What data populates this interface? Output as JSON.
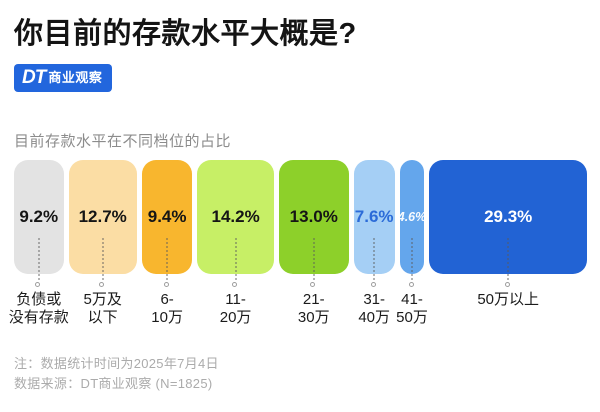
{
  "header": {
    "title": "你目前的存款水平大概是?",
    "logo": {
      "dt": "DT",
      "name": "商业观察",
      "bg": "#2266dd",
      "fg": "#ffffff"
    }
  },
  "chart": {
    "subtitle": "目前存款水平在不同档位的占比"
  },
  "chart_data": {
    "type": "bar",
    "variant": "proportional-horizontal-segmented",
    "title": "目前存款水平在不同档位的占比",
    "unit": "%",
    "total": 100,
    "categories": [
      "负债或没有存款",
      "5万及以下",
      "6-10万",
      "11-20万",
      "21-30万",
      "31-40万",
      "41-50万",
      "50万以上"
    ],
    "values": [
      9.2,
      12.7,
      9.4,
      14.2,
      13.0,
      7.6,
      4.6,
      29.3
    ],
    "segments": [
      {
        "label_lines": [
          "负债或",
          "没有存款"
        ],
        "value": 9.2,
        "display": "9.2%",
        "color": "#e3e3e3",
        "text_color": "#151515"
      },
      {
        "label_lines": [
          "5万及",
          "以下"
        ],
        "value": 12.7,
        "display": "12.7%",
        "color": "#fbdda4",
        "text_color": "#151515"
      },
      {
        "label_lines": [
          "6-",
          "10万"
        ],
        "value": 9.4,
        "display": "9.4%",
        "color": "#f8b62e",
        "text_color": "#151515"
      },
      {
        "label_lines": [
          "11-",
          "20万"
        ],
        "value": 14.2,
        "display": "14.2%",
        "color": "#c7ef66",
        "text_color": "#151515"
      },
      {
        "label_lines": [
          "21-",
          "30万"
        ],
        "value": 13.0,
        "display": "13.0%",
        "color": "#8dd02a",
        "text_color": "#151515"
      },
      {
        "label_lines": [
          "31-",
          "40万"
        ],
        "value": 7.6,
        "display": "7.6%",
        "color": "#a5cff5",
        "text_color": "#2b6bd8"
      },
      {
        "label_lines": [
          "41-",
          "50万"
        ],
        "value": 4.6,
        "display": "4.6%",
        "color": "#64a6ec",
        "text_color": "#ffffff",
        "small": true
      },
      {
        "label_lines": [
          "50万以上"
        ],
        "value": 29.3,
        "display": "29.3%",
        "color": "#2263d4",
        "text_color": "#ffffff"
      }
    ]
  },
  "footer": {
    "note1": "注：数据统计时间为2025年7月4日",
    "note2": "数据来源：DT商业观察 (N=1825)"
  }
}
